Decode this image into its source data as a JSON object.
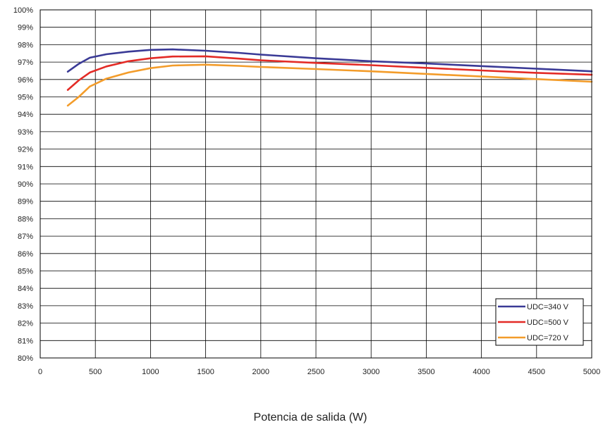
{
  "chart_data": {
    "type": "line",
    "title": "",
    "xlabel": "Potencia de salida (W)",
    "ylabel": "",
    "xlim": [
      0,
      5000
    ],
    "ylim": [
      80,
      100
    ],
    "x_ticks": [
      0,
      500,
      1000,
      1500,
      2000,
      2500,
      3000,
      3500,
      4000,
      4500,
      5000
    ],
    "x_tick_labels": [
      "0",
      "500",
      "1000",
      "1500",
      "2000",
      "2500",
      "3000",
      "3500",
      "4000",
      "4500",
      "5000"
    ],
    "y_ticks": [
      80,
      81,
      82,
      83,
      84,
      85,
      86,
      87,
      88,
      89,
      90,
      91,
      92,
      93,
      94,
      95,
      96,
      97,
      98,
      99,
      100
    ],
    "y_tick_labels": [
      "80%",
      "81%",
      "82%",
      "83%",
      "84%",
      "85%",
      "86%",
      "87%",
      "88%",
      "89%",
      "90%",
      "91%",
      "92%",
      "93%",
      "94%",
      "95%",
      "96%",
      "97%",
      "98%",
      "99%",
      "100%"
    ],
    "grid": true,
    "legend_position": "bottom-right",
    "series": [
      {
        "name": "UDC=340 V",
        "color": "#3a3a96",
        "points": [
          [
            250,
            96.45
          ],
          [
            350,
            96.9
          ],
          [
            450,
            97.25
          ],
          [
            600,
            97.45
          ],
          [
            800,
            97.6
          ],
          [
            1000,
            97.7
          ],
          [
            1200,
            97.73
          ],
          [
            1500,
            97.65
          ],
          [
            1800,
            97.53
          ],
          [
            2000,
            97.43
          ],
          [
            2500,
            97.22
          ],
          [
            3000,
            97.05
          ],
          [
            3500,
            96.92
          ],
          [
            4000,
            96.77
          ],
          [
            4500,
            96.62
          ],
          [
            5000,
            96.47
          ]
        ]
      },
      {
        "name": "UDC=500 V",
        "color": "#e32b26",
        "points": [
          [
            250,
            95.4
          ],
          [
            350,
            95.95
          ],
          [
            450,
            96.4
          ],
          [
            600,
            96.75
          ],
          [
            800,
            97.05
          ],
          [
            1000,
            97.22
          ],
          [
            1200,
            97.32
          ],
          [
            1500,
            97.33
          ],
          [
            1800,
            97.2
          ],
          [
            2000,
            97.1
          ],
          [
            2500,
            96.95
          ],
          [
            3000,
            96.82
          ],
          [
            3500,
            96.67
          ],
          [
            4000,
            96.52
          ],
          [
            4500,
            96.38
          ],
          [
            5000,
            96.27
          ]
        ]
      },
      {
        "name": "UDC=720 V",
        "color": "#f39c2a",
        "points": [
          [
            250,
            94.5
          ],
          [
            350,
            95.0
          ],
          [
            450,
            95.6
          ],
          [
            600,
            96.05
          ],
          [
            800,
            96.4
          ],
          [
            1000,
            96.65
          ],
          [
            1200,
            96.8
          ],
          [
            1500,
            96.85
          ],
          [
            1800,
            96.78
          ],
          [
            2000,
            96.72
          ],
          [
            2500,
            96.6
          ],
          [
            3000,
            96.47
          ],
          [
            3500,
            96.32
          ],
          [
            4000,
            96.17
          ],
          [
            4500,
            96.02
          ],
          [
            5000,
            95.87
          ]
        ]
      }
    ]
  }
}
